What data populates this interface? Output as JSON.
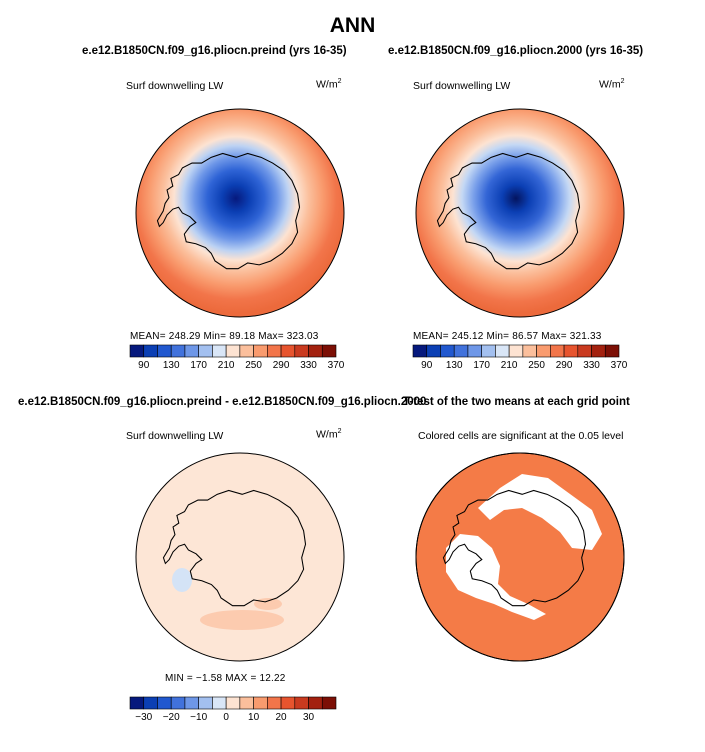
{
  "title": "ANN",
  "panels": [
    {
      "case": "e.e12.B1850CN.f09_g16.pliocn.preind (yrs 16-35)",
      "variable": "Surf downwelling LW",
      "units_base": "W/m",
      "units_exp": "2",
      "stats": "MEAN= 248.29   Min=  89.18   Max= 323.03"
    },
    {
      "case": "e.e12.B1850CN.f09_g16.pliocn.2000 (yrs 16-35)",
      "variable": "Surf downwelling LW",
      "units_base": "W/m",
      "units_exp": "2",
      "stats": "MEAN= 245.12   Min=  86.57   Max= 321.33"
    },
    {
      "case": "e.e12.B1850CN.f09_g16.pliocn.preind - e.e12.B1850CN.f09_g16.pliocn.2000",
      "variable": "Surf downwelling LW",
      "units_base": "W/m",
      "units_exp": "2",
      "stats": "MIN =  −1.58  MAX =   12.22"
    },
    {
      "case": "T-test of the two means at each grid point",
      "variable": "Colored cells are significant at the 0.05 level"
    }
  ],
  "chart_data": [
    {
      "type": "heatmap",
      "projection": "south polar stereographic",
      "colorbar": {
        "tick_labels": [
          "90",
          "130",
          "170",
          "210",
          "250",
          "290",
          "330",
          "370"
        ],
        "colors": [
          "#06197d",
          "#0b3fb4",
          "#2158cf",
          "#4172dc",
          "#6e97e8",
          "#a3c0f0",
          "#d9e6f7",
          "#fde3d2",
          "#fbbf9c",
          "#f99b6e",
          "#f2754a",
          "#e7542e",
          "#c93a1f",
          "#a3210f",
          "#7c0f05"
        ]
      },
      "colorbar_diff": {
        "tick_labels": [
          "−30",
          "−20",
          "−10",
          "0",
          "10",
          "20",
          "30"
        ],
        "colors": [
          "#06197d",
          "#0b3fb4",
          "#2158cf",
          "#4172dc",
          "#6e97e8",
          "#a3c0f0",
          "#d9e6f7",
          "#fde3d2",
          "#fbbf9c",
          "#f99b6e",
          "#f2754a",
          "#e7542e",
          "#c93a1f",
          "#a3210f",
          "#7c0f05"
        ]
      },
      "panels": [
        {
          "name": "preind",
          "mean": 248.29,
          "min": 89.18,
          "max": 323.03
        },
        {
          "name": "2000",
          "mean": 245.12,
          "min": 86.57,
          "max": 321.33
        },
        {
          "name": "difference",
          "min": -1.58,
          "max": 12.22
        },
        {
          "name": "t-test significance",
          "significance_level": 0.05
        }
      ]
    }
  ]
}
